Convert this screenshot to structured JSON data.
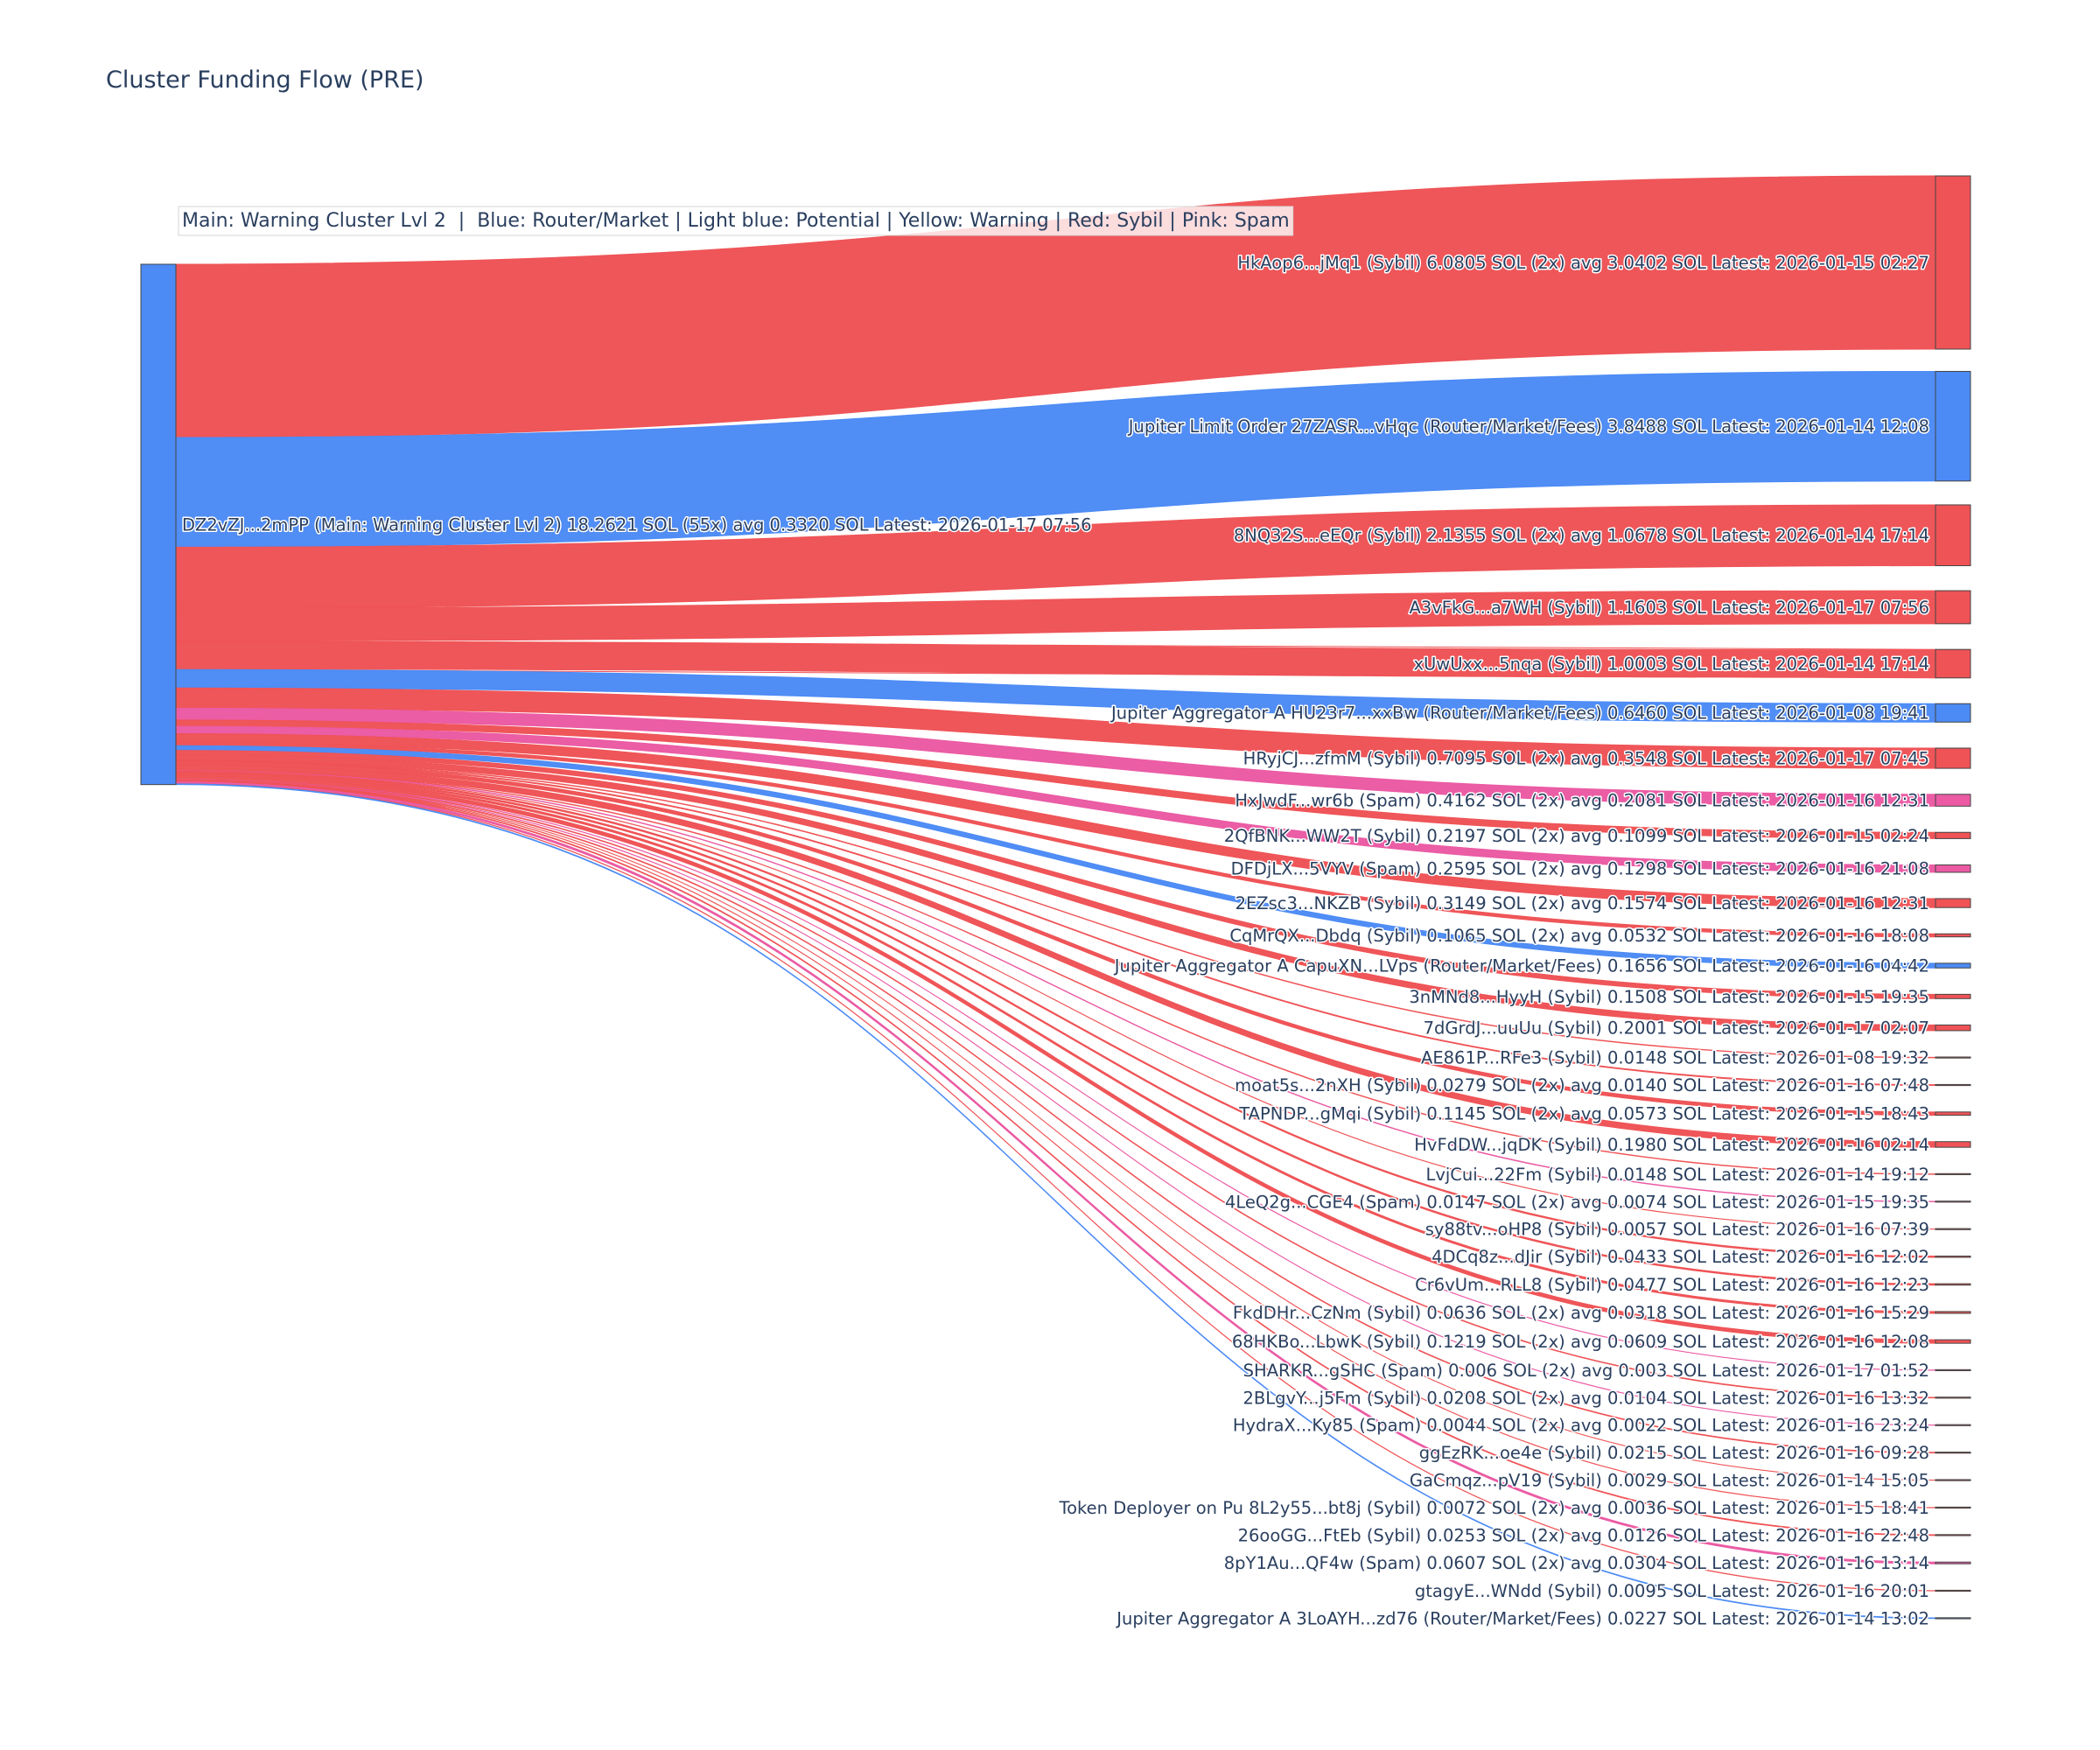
{
  "title": "Cluster Funding Flow (PRE)",
  "legend_text": "Main: Warning Cluster Lvl 2  |  Blue: Router/Market | Light blue: Potential | Yellow: Warning | Red: Sybil | Pink: Spam",
  "colors": {
    "router": "#4c8bf5",
    "sybil": "#ef5356",
    "spam": "#eb5aa3",
    "main": "#4c8bf5"
  },
  "chart_data": {
    "type": "sankey",
    "title": "Cluster Funding Flow (PRE)",
    "source": {
      "label": "DZ2vZJ...2mPP (Main: Warning Cluster Lvl 2) 18.2621 SOL (55x) avg 0.3320 SOL Latest: 2026-01-17 07:56",
      "value": 18.2621,
      "category": "main"
    },
    "targets": [
      {
        "label": "HkAop6...jMq1 (Sybil) 6.0805 SOL (2x) avg 3.0402 SOL Latest: 2026-01-15 02:27",
        "value": 6.0805,
        "category": "sybil"
      },
      {
        "label": "Jupiter Limit Order  27ZASR...vHqc (Router/Market/Fees) 3.8488 SOL Latest: 2026-01-14 12:08",
        "value": 3.8488,
        "category": "router"
      },
      {
        "label": "8NQ32S...eEQr (Sybil) 2.1355 SOL (2x) avg 1.0678 SOL Latest: 2026-01-14 17:14",
        "value": 2.1355,
        "category": "sybil"
      },
      {
        "label": "A3vFkG...a7WH (Sybil) 1.1603 SOL Latest: 2026-01-17 07:56",
        "value": 1.1603,
        "category": "sybil"
      },
      {
        "label": "xUwUxx...5nqa (Sybil) 1.0003 SOL Latest: 2026-01-14 17:14",
        "value": 1.0003,
        "category": "sybil"
      },
      {
        "label": "Jupiter Aggregator A HU23r7...xxBw (Router/Market/Fees) 0.6460 SOL Latest: 2026-01-08 19:41",
        "value": 0.646,
        "category": "router"
      },
      {
        "label": "HRyjCJ...zfmM (Sybil) 0.7095 SOL (2x) avg 0.3548 SOL Latest: 2026-01-17 07:45",
        "value": 0.7095,
        "category": "sybil"
      },
      {
        "label": "HxJwdF...wr6b (Spam) 0.4162 SOL (2x) avg 0.2081 SOL Latest: 2026-01-16 12:31",
        "value": 0.4162,
        "category": "spam"
      },
      {
        "label": "2QfBNK...WW2T (Sybil) 0.2197 SOL (2x) avg 0.1099 SOL Latest: 2026-01-15 02:24",
        "value": 0.2197,
        "category": "sybil"
      },
      {
        "label": "DFDjLX...5VYV (Spam) 0.2595 SOL (2x) avg 0.1298 SOL Latest: 2026-01-16 21:08",
        "value": 0.2595,
        "category": "spam"
      },
      {
        "label": "2EZsc3...NKZB (Sybil) 0.3149 SOL (2x) avg 0.1574 SOL Latest: 2026-01-16 12:31",
        "value": 0.3149,
        "category": "sybil"
      },
      {
        "label": "CqMrQX...Dbdq (Sybil) 0.1065 SOL (2x) avg 0.0532 SOL Latest: 2026-01-16 18:08",
        "value": 0.1065,
        "category": "sybil"
      },
      {
        "label": "Jupiter Aggregator A CapuXN...LVps (Router/Market/Fees) 0.1656 SOL Latest: 2026-01-16 04:42",
        "value": 0.1656,
        "category": "router"
      },
      {
        "label": "3nMNd8...HyyH (Sybil) 0.1508 SOL Latest: 2026-01-15 19:35",
        "value": 0.1508,
        "category": "sybil"
      },
      {
        "label": "7dGrdJ...uuUu (Sybil) 0.2001 SOL Latest: 2026-01-17 02:07",
        "value": 0.2001,
        "category": "sybil"
      },
      {
        "label": "AE861P...RFe3 (Sybil) 0.0148 SOL Latest: 2026-01-08 19:32",
        "value": 0.0148,
        "category": "sybil"
      },
      {
        "label": "moat5s...2nXH (Sybil) 0.0279 SOL (2x) avg 0.0140 SOL Latest: 2026-01-16 07:48",
        "value": 0.0279,
        "category": "sybil"
      },
      {
        "label": "TAPNDP...gMqi (Sybil) 0.1145 SOL (2x) avg 0.0573 SOL Latest: 2026-01-15 18:43",
        "value": 0.1145,
        "category": "sybil"
      },
      {
        "label": "HvFdDW...jqDK (Sybil) 0.1980 SOL Latest: 2026-01-16 02:14",
        "value": 0.198,
        "category": "sybil"
      },
      {
        "label": "LvjCui...22Fm (Sybil) 0.0148 SOL Latest: 2026-01-14 19:12",
        "value": 0.0148,
        "category": "sybil"
      },
      {
        "label": "4LeQ2g...CGE4 (Spam) 0.0147 SOL (2x) avg 0.0074 SOL Latest: 2026-01-15 19:35",
        "value": 0.0147,
        "category": "spam"
      },
      {
        "label": "sy88tv...oHP8 (Sybil) 0.0057 SOL Latest: 2026-01-16 07:39",
        "value": 0.0057,
        "category": "sybil"
      },
      {
        "label": "4DCq8z...dJir (Sybil) 0.0433 SOL Latest: 2026-01-16 12:02",
        "value": 0.0433,
        "category": "sybil"
      },
      {
        "label": "Cr6vUm...RLL8 (Sybil) 0.0477 SOL Latest: 2026-01-16 12:23",
        "value": 0.0477,
        "category": "sybil"
      },
      {
        "label": "FkdDHr...CzNm (Sybil) 0.0636 SOL (2x) avg 0.0318 SOL Latest: 2026-01-16 15:29",
        "value": 0.0636,
        "category": "sybil"
      },
      {
        "label": "68HKBo...LbwK (Sybil) 0.1219 SOL (2x) avg 0.0609 SOL Latest: 2026-01-16 12:08",
        "value": 0.1219,
        "category": "sybil"
      },
      {
        "label": "SHARKR...gSHC (Spam) 0.006 SOL (2x) avg 0.003 SOL Latest: 2026-01-17 01:52",
        "value": 0.006,
        "category": "spam"
      },
      {
        "label": "2BLgvY...j5Fm (Sybil) 0.0208 SOL (2x) avg 0.0104 SOL Latest: 2026-01-16 13:32",
        "value": 0.0208,
        "category": "sybil"
      },
      {
        "label": "HydraX...Ky85 (Spam) 0.0044 SOL (2x) avg 0.0022 SOL Latest: 2026-01-16 23:24",
        "value": 0.0044,
        "category": "spam"
      },
      {
        "label": "ggEzRK...oe4e (Sybil) 0.0215 SOL Latest: 2026-01-16 09:28",
        "value": 0.0215,
        "category": "sybil"
      },
      {
        "label": "GaCmqz...pV19 (Sybil) 0.0029 SOL Latest: 2026-01-14 15:05",
        "value": 0.0029,
        "category": "sybil"
      },
      {
        "label": "Token Deployer on Pu 8L2y55...bt8j (Sybil) 0.0072 SOL (2x) avg 0.0036 SOL Latest: 2026-01-15 18:41",
        "value": 0.0072,
        "category": "sybil"
      },
      {
        "label": "26ooGG...FtEb (Sybil) 0.0253 SOL (2x) avg 0.0126 SOL Latest: 2026-01-16 22:48",
        "value": 0.0253,
        "category": "sybil"
      },
      {
        "label": "8pY1Au...QF4w (Spam) 0.0607 SOL (2x) avg 0.0304 SOL Latest: 2026-01-16 13:14",
        "value": 0.0607,
        "category": "spam"
      },
      {
        "label": "gtagyE...WNdd (Sybil) 0.0095 SOL Latest: 2026-01-16 20:01",
        "value": 0.0095,
        "category": "sybil"
      },
      {
        "label": "Jupiter Aggregator A 3LoAYH...zd76 (Router/Market/Fees) 0.0227 SOL Latest: 2026-01-14 13:02",
        "value": 0.0227,
        "category": "router"
      }
    ]
  }
}
